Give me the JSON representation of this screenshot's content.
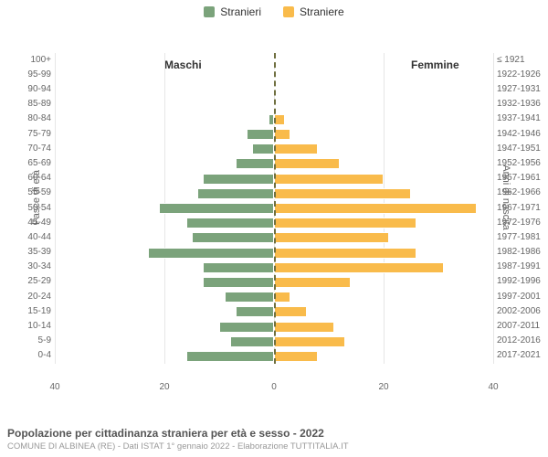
{
  "legend": {
    "male": "Stranieri",
    "female": "Straniere"
  },
  "colors": {
    "male": "#7ba37b",
    "female": "#f9bb4b",
    "grid": "#e6e6e6",
    "center": "#707041",
    "axis_text": "#666666",
    "bg": "#ffffff"
  },
  "headers": {
    "left": "Maschi",
    "right": "Femmine"
  },
  "axis": {
    "left_label": "Fasce di età",
    "right_label": "Anni di nascita",
    "x_ticks": [
      40,
      20,
      0,
      20,
      40
    ],
    "xmax": 40
  },
  "rows": [
    {
      "age": "100+",
      "birth": "≤ 1921",
      "m": 0,
      "f": 0
    },
    {
      "age": "95-99",
      "birth": "1922-1926",
      "m": 0,
      "f": 0
    },
    {
      "age": "90-94",
      "birth": "1927-1931",
      "m": 0,
      "f": 0
    },
    {
      "age": "85-89",
      "birth": "1932-1936",
      "m": 0,
      "f": 0
    },
    {
      "age": "80-84",
      "birth": "1937-1941",
      "m": 1,
      "f": 2
    },
    {
      "age": "75-79",
      "birth": "1942-1946",
      "m": 5,
      "f": 3
    },
    {
      "age": "70-74",
      "birth": "1947-1951",
      "m": 4,
      "f": 8
    },
    {
      "age": "65-69",
      "birth": "1952-1956",
      "m": 7,
      "f": 12
    },
    {
      "age": "60-64",
      "birth": "1957-1961",
      "m": 13,
      "f": 20
    },
    {
      "age": "55-59",
      "birth": "1962-1966",
      "m": 14,
      "f": 25
    },
    {
      "age": "50-54",
      "birth": "1967-1971",
      "m": 21,
      "f": 37
    },
    {
      "age": "45-49",
      "birth": "1972-1976",
      "m": 16,
      "f": 26
    },
    {
      "age": "40-44",
      "birth": "1977-1981",
      "m": 15,
      "f": 21
    },
    {
      "age": "35-39",
      "birth": "1982-1986",
      "m": 23,
      "f": 26
    },
    {
      "age": "30-34",
      "birth": "1987-1991",
      "m": 13,
      "f": 31
    },
    {
      "age": "25-29",
      "birth": "1992-1996",
      "m": 13,
      "f": 14
    },
    {
      "age": "20-24",
      "birth": "1997-2001",
      "m": 9,
      "f": 3
    },
    {
      "age": "15-19",
      "birth": "2002-2006",
      "m": 7,
      "f": 6
    },
    {
      "age": "10-14",
      "birth": "2007-2011",
      "m": 10,
      "f": 11
    },
    {
      "age": "5-9",
      "birth": "2012-2016",
      "m": 8,
      "f": 13
    },
    {
      "age": "0-4",
      "birth": "2017-2021",
      "m": 16,
      "f": 8
    }
  ],
  "footer": {
    "title": "Popolazione per cittadinanza straniera per età e sesso - 2022",
    "sub": "COMUNE DI ALBINEA (RE) - Dati ISTAT 1° gennaio 2022 - Elaborazione TUTTITALIA.IT"
  },
  "chart_type": "population-pyramid",
  "typography": {
    "legend_fontsize": 12,
    "tick_fontsize": 10,
    "footer_title_fontsize": 12,
    "footer_sub_fontsize": 9.5
  }
}
